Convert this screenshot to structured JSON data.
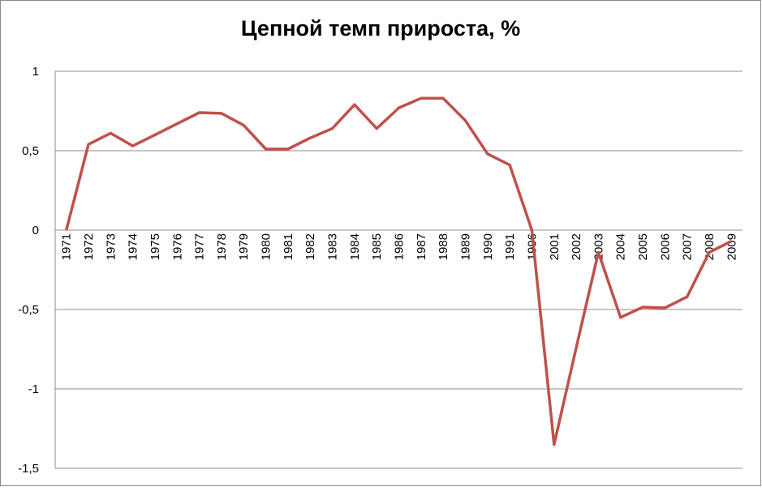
{
  "chart_data": {
    "type": "line",
    "title": "Цепной темп прироста, %",
    "categories": [
      "1971",
      "1972",
      "1973",
      "1974",
      "1975",
      "1976",
      "1977",
      "1978",
      "1979",
      "1980",
      "1981",
      "1982",
      "1983",
      "1984",
      "1985",
      "1986",
      "1987",
      "1988",
      "1989",
      "1990",
      "1991",
      "1996",
      "2001",
      "2002",
      "2003",
      "2004",
      "2005",
      "2006",
      "2007",
      "2008",
      "2009"
    ],
    "series": [
      {
        "name": "Цепной темп прироста",
        "color": "#c0504d",
        "values": [
          0,
          0.54,
          0.61,
          0.53,
          0.6,
          0.67,
          0.74,
          0.735,
          0.66,
          0.51,
          0.51,
          0.58,
          0.64,
          0.79,
          0.64,
          0.77,
          0.83,
          0.83,
          0.69,
          0.48,
          0.41,
          0,
          -1.35,
          -0.74,
          -0.14,
          -0.55,
          -0.485,
          -0.49,
          -0.42,
          -0.14,
          -0.07
        ]
      }
    ],
    "ylim": [
      -1.5,
      1
    ],
    "yticks": [
      {
        "value": -1.5,
        "label": "-1,5"
      },
      -1,
      {
        "value": -0.5,
        "label": "-0,5"
      },
      0,
      {
        "value": 0.5,
        "label": "0,5"
      },
      1
    ],
    "grid": true
  }
}
